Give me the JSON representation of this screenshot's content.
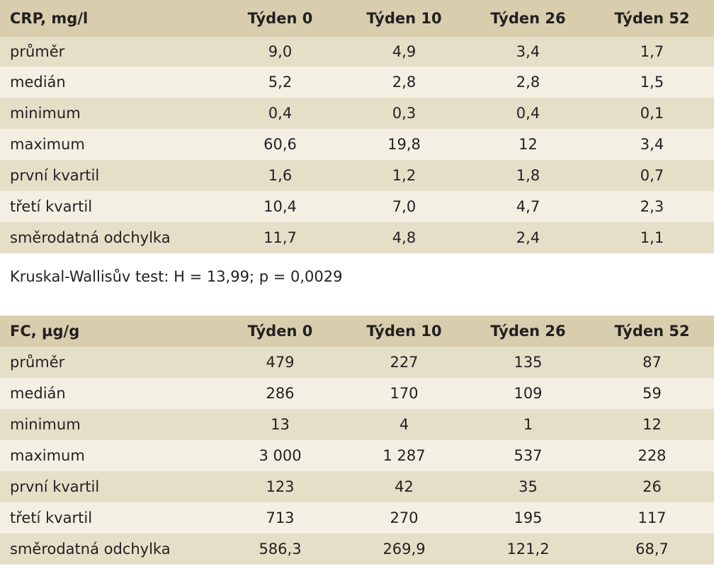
{
  "columns": [
    "Týden 0",
    "Týden 10",
    "Týden 26",
    "Týden 52"
  ],
  "crp": {
    "title": "CRP, mg/l",
    "rows": [
      {
        "label": "průměr",
        "values": [
          "9,0",
          "4,9",
          "3,4",
          "1,7"
        ]
      },
      {
        "label": "medián",
        "values": [
          "5,2",
          "2,8",
          "2,8",
          "1,5"
        ]
      },
      {
        "label": "minimum",
        "values": [
          "0,4",
          "0,3",
          "0,4",
          "0,1"
        ]
      },
      {
        "label": "maximum",
        "values": [
          "60,6",
          "19,8",
          "12",
          "3,4"
        ]
      },
      {
        "label": "první kvartil",
        "values": [
          "1,6",
          "1,2",
          "1,8",
          "0,7"
        ]
      },
      {
        "label": "třetí kvartil",
        "values": [
          "10,4",
          "7,0",
          "4,7",
          "2,3"
        ]
      },
      {
        "label": "směrodatná odchylka",
        "values": [
          "11,7",
          "4,8",
          "2,4",
          "1,1"
        ]
      }
    ]
  },
  "note": "Kruskal-Wallisův test: H = 13,99; p = 0,0029",
  "fc": {
    "title": "FC, µg/g",
    "rows": [
      {
        "label": "průměr",
        "values": [
          "479",
          "227",
          "135",
          "87"
        ]
      },
      {
        "label": "medián",
        "values": [
          "286",
          "170",
          "109",
          "59"
        ]
      },
      {
        "label": "minimum",
        "values": [
          "13",
          "4",
          "1",
          "12"
        ]
      },
      {
        "label": "maximum",
        "values": [
          "3 000",
          "1 287",
          "537",
          "228"
        ]
      },
      {
        "label": "první kvartil",
        "values": [
          "123",
          "42",
          "35",
          "26"
        ]
      },
      {
        "label": "třetí kvartil",
        "values": [
          "713",
          "270",
          "195",
          "117"
        ]
      },
      {
        "label": "směrodatná odchylka",
        "values": [
          "586,3",
          "269,9",
          "121,2",
          "68,7"
        ]
      }
    ]
  },
  "colors": {
    "header_bg": "#d8ceae",
    "row_dark": "#e6dfc8",
    "row_light": "#f3efe3"
  }
}
